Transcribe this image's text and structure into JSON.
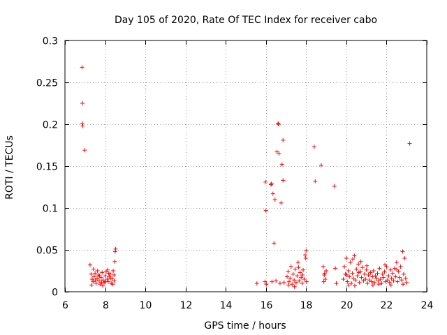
{
  "chart_data": {
    "type": "scatter",
    "title": "Day 105 of 2020, Rate Of TEC Index for receiver cabo",
    "xlabel": "GPS time / hours",
    "ylabel": "ROTI / TECUs",
    "xlim": [
      6,
      24
    ],
    "ylim": [
      0,
      0.3
    ],
    "xticks": [
      6,
      8,
      10,
      12,
      14,
      16,
      18,
      20,
      22,
      24
    ],
    "xtick_labels": [
      "6",
      "8",
      "10",
      "12",
      "14",
      "16",
      "18",
      "20",
      "22",
      "24"
    ],
    "yticks": [
      0,
      0.05,
      0.1,
      0.15,
      0.2,
      0.25,
      0.3
    ],
    "ytick_labels": [
      "0",
      "0.05",
      "0.1",
      "0.15",
      "0.2",
      "0.25",
      "0.3"
    ],
    "grid": true,
    "marker": "+",
    "marker_color": "#ff0000",
    "series": [
      {
        "name": "ROTI",
        "points": [
          [
            6.85,
            0.268
          ],
          [
            6.87,
            0.225
          ],
          [
            6.86,
            0.201
          ],
          [
            6.88,
            0.198
          ],
          [
            6.98,
            0.169
          ],
          [
            7.25,
            0.032
          ],
          [
            7.3,
            0.021
          ],
          [
            7.35,
            0.015
          ],
          [
            7.4,
            0.012
          ],
          [
            7.45,
            0.018
          ],
          [
            7.5,
            0.022
          ],
          [
            7.55,
            0.01
          ],
          [
            7.6,
            0.016
          ],
          [
            7.65,
            0.02
          ],
          [
            7.7,
            0.013
          ],
          [
            7.75,
            0.009
          ],
          [
            7.8,
            0.017
          ],
          [
            7.85,
            0.023
          ],
          [
            7.9,
            0.014
          ],
          [
            7.95,
            0.011
          ],
          [
            8.0,
            0.019
          ],
          [
            8.05,
            0.024
          ],
          [
            8.1,
            0.015
          ],
          [
            8.15,
            0.012
          ],
          [
            8.2,
            0.018
          ],
          [
            8.25,
            0.021
          ],
          [
            8.3,
            0.01
          ],
          [
            8.35,
            0.016
          ],
          [
            8.4,
            0.025
          ],
          [
            8.45,
            0.013
          ],
          [
            8.5,
            0.048
          ],
          [
            8.52,
            0.051
          ],
          [
            8.48,
            0.036
          ],
          [
            7.32,
            0.008
          ],
          [
            7.62,
            0.025
          ],
          [
            7.88,
            0.007
          ],
          [
            8.12,
            0.026
          ],
          [
            8.38,
            0.009
          ],
          [
            7.42,
            0.027
          ],
          [
            7.72,
            0.019
          ],
          [
            8.02,
            0.012
          ],
          [
            8.28,
            0.016
          ],
          [
            7.52,
            0.014
          ],
          [
            7.82,
            0.011
          ],
          [
            8.18,
            0.022
          ],
          [
            8.44,
            0.02
          ],
          [
            15.55,
            0.01
          ],
          [
            15.95,
            0.012
          ],
          [
            15.98,
            0.131
          ],
          [
            16.0,
            0.097
          ],
          [
            16.02,
            0.009
          ],
          [
            16.25,
            0.128
          ],
          [
            16.28,
            0.129
          ],
          [
            16.35,
            0.117
          ],
          [
            16.4,
            0.058
          ],
          [
            16.45,
            0.11
          ],
          [
            16.55,
            0.167
          ],
          [
            16.6,
            0.201
          ],
          [
            16.62,
            0.2
          ],
          [
            16.65,
            0.165
          ],
          [
            16.75,
            0.106
          ],
          [
            16.8,
            0.152
          ],
          [
            16.85,
            0.133
          ],
          [
            16.85,
            0.181
          ],
          [
            16.3,
            0.012
          ],
          [
            16.5,
            0.013
          ],
          [
            16.7,
            0.01
          ],
          [
            16.9,
            0.011
          ],
          [
            17.05,
            0.018
          ],
          [
            17.1,
            0.024
          ],
          [
            17.15,
            0.012
          ],
          [
            17.2,
            0.016
          ],
          [
            17.25,
            0.03
          ],
          [
            17.3,
            0.009
          ],
          [
            17.35,
            0.021
          ],
          [
            17.4,
            0.014
          ],
          [
            17.45,
            0.027
          ],
          [
            17.5,
            0.011
          ],
          [
            17.55,
            0.019
          ],
          [
            17.6,
            0.035
          ],
          [
            17.65,
            0.013
          ],
          [
            17.7,
            0.023
          ],
          [
            17.75,
            0.017
          ],
          [
            17.8,
            0.01
          ],
          [
            17.85,
            0.026
          ],
          [
            17.9,
            0.015
          ],
          [
            17.95,
            0.044
          ],
          [
            18.0,
            0.049
          ],
          [
            17.98,
            0.04
          ],
          [
            18.02,
            0.012
          ],
          [
            17.12,
            0.008
          ],
          [
            17.42,
            0.006
          ],
          [
            17.62,
            0.029
          ],
          [
            17.82,
            0.02
          ],
          [
            18.4,
            0.173
          ],
          [
            18.45,
            0.132
          ],
          [
            18.75,
            0.151
          ],
          [
            18.85,
            0.03
          ],
          [
            18.9,
            0.02
          ],
          [
            18.95,
            0.015
          ],
          [
            19.0,
            0.025
          ],
          [
            18.88,
            0.012
          ],
          [
            18.92,
            0.022
          ],
          [
            19.4,
            0.126
          ],
          [
            19.45,
            0.028
          ],
          [
            19.5,
            0.01
          ],
          [
            19.85,
            0.015
          ],
          [
            19.9,
            0.03
          ],
          [
            19.95,
            0.021
          ],
          [
            20.0,
            0.04
          ],
          [
            20.05,
            0.012
          ],
          [
            20.1,
            0.025
          ],
          [
            20.15,
            0.018
          ],
          [
            20.2,
            0.035
          ],
          [
            20.25,
            0.01
          ],
          [
            20.3,
            0.022
          ],
          [
            20.35,
            0.016
          ],
          [
            20.4,
            0.043
          ],
          [
            20.45,
            0.014
          ],
          [
            20.5,
            0.027
          ],
          [
            20.55,
            0.019
          ],
          [
            20.6,
            0.033
          ],
          [
            20.65,
            0.011
          ],
          [
            20.7,
            0.024
          ],
          [
            20.75,
            0.017
          ],
          [
            20.8,
            0.029
          ],
          [
            20.85,
            0.013
          ],
          [
            20.9,
            0.021
          ],
          [
            20.95,
            0.015
          ],
          [
            21.0,
            0.026
          ],
          [
            21.05,
            0.01
          ],
          [
            21.1,
            0.02
          ],
          [
            21.15,
            0.014
          ],
          [
            21.2,
            0.023
          ],
          [
            21.25,
            0.012
          ],
          [
            21.3,
            0.018
          ],
          [
            21.35,
            0.025
          ],
          [
            21.4,
            0.011
          ],
          [
            21.45,
            0.019
          ],
          [
            21.5,
            0.016
          ],
          [
            21.55,
            0.022
          ],
          [
            21.6,
            0.013
          ],
          [
            21.65,
            0.028
          ],
          [
            21.7,
            0.015
          ],
          [
            21.75,
            0.01
          ],
          [
            21.8,
            0.021
          ],
          [
            21.85,
            0.017
          ],
          [
            21.9,
            0.024
          ],
          [
            21.95,
            0.012
          ],
          [
            22.0,
            0.03
          ],
          [
            22.05,
            0.014
          ],
          [
            22.1,
            0.019
          ],
          [
            22.15,
            0.011
          ],
          [
            22.2,
            0.026
          ],
          [
            22.25,
            0.016
          ],
          [
            22.3,
            0.022
          ],
          [
            22.35,
            0.013
          ],
          [
            22.4,
            0.028
          ],
          [
            22.45,
            0.018
          ],
          [
            22.5,
            0.035
          ],
          [
            22.55,
            0.012
          ],
          [
            22.6,
            0.024
          ],
          [
            22.65,
            0.017
          ],
          [
            22.7,
            0.03
          ],
          [
            22.75,
            0.014
          ],
          [
            22.8,
            0.048
          ],
          [
            22.85,
            0.021
          ],
          [
            22.9,
            0.04
          ],
          [
            22.95,
            0.016
          ],
          [
            23.0,
            0.011
          ],
          [
            23.15,
            0.177
          ],
          [
            20.12,
            0.008
          ],
          [
            20.42,
            0.007
          ],
          [
            20.72,
            0.036
          ],
          [
            21.02,
            0.031
          ],
          [
            21.32,
            0.008
          ],
          [
            21.62,
            0.009
          ],
          [
            21.92,
            0.032
          ],
          [
            22.22,
            0.008
          ],
          [
            22.52,
            0.026
          ],
          [
            22.82,
            0.009
          ],
          [
            20.02,
            0.02
          ],
          [
            20.32,
            0.039
          ],
          [
            20.62,
            0.023
          ]
        ]
      }
    ]
  }
}
